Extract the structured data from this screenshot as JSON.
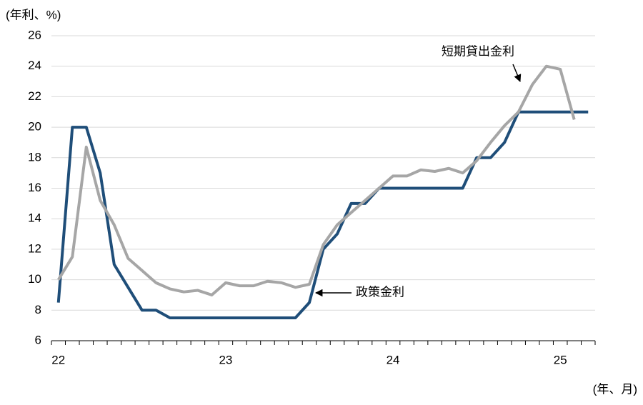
{
  "chart_data": {
    "type": "line",
    "y_unit_label": "(年利、%)",
    "x_unit_label": "(年、月)",
    "categories": [
      "22",
      null,
      null,
      null,
      null,
      null,
      null,
      null,
      null,
      null,
      null,
      null,
      "23",
      null,
      null,
      null,
      null,
      null,
      null,
      null,
      null,
      null,
      null,
      null,
      "24",
      null,
      null,
      null,
      null,
      null,
      null,
      null,
      null,
      null,
      null,
      null,
      "25",
      null,
      null
    ],
    "series": [
      {
        "name": "政策金利",
        "color": "#1f4e79",
        "values": [
          8.5,
          20,
          20,
          17,
          11,
          9.5,
          8,
          8,
          7.5,
          7.5,
          7.5,
          7.5,
          7.5,
          7.5,
          7.5,
          7.5,
          7.5,
          7.5,
          8.5,
          12,
          13,
          15,
          15,
          16,
          16,
          16,
          16,
          16,
          16,
          16,
          18,
          18,
          19,
          21,
          21,
          21,
          21,
          21,
          21
        ]
      },
      {
        "name": "短期貸出金利",
        "color": "#a6a6a6",
        "values": [
          10,
          11.5,
          18.7,
          15.2,
          13.6,
          11.4,
          10.6,
          9.8,
          9.4,
          9.2,
          9.3,
          9.0,
          9.8,
          9.6,
          9.6,
          9.9,
          9.8,
          9.5,
          9.7,
          12.3,
          13.6,
          14.4,
          15.2,
          16.0,
          16.8,
          16.8,
          17.2,
          17.1,
          17.3,
          17.0,
          17.8,
          19.0,
          20.1,
          21.0,
          22.8,
          24.0,
          23.8,
          20.5,
          null
        ]
      }
    ],
    "ylim": [
      6,
      26
    ],
    "yticks": [
      6,
      8,
      10,
      12,
      14,
      16,
      18,
      20,
      22,
      24,
      26
    ],
    "grid": true
  }
}
